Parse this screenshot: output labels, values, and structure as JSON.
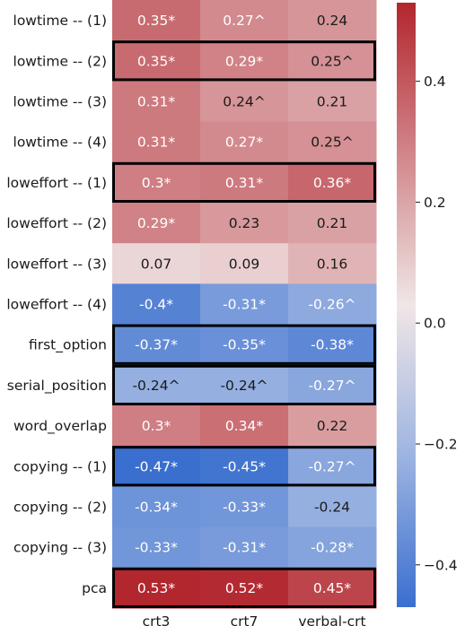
{
  "chart_data": {
    "type": "heatmap",
    "title": "",
    "rows": [
      "lowtime -- (1)",
      "lowtime -- (2)",
      "lowtime -- (3)",
      "lowtime -- (4)",
      "loweffort -- (1)",
      "loweffort -- (2)",
      "loweffort -- (3)",
      "loweffort -- (4)",
      "first_option",
      "serial_position",
      "word_overlap",
      "copying -- (1)",
      "copying -- (2)",
      "copying -- (3)",
      "pca"
    ],
    "columns": [
      "crt3",
      "crt7",
      "verbal-crt"
    ],
    "values": [
      [
        0.35,
        0.27,
        0.24
      ],
      [
        0.35,
        0.29,
        0.25
      ],
      [
        0.31,
        0.24,
        0.21
      ],
      [
        0.31,
        0.27,
        0.25
      ],
      [
        0.3,
        0.31,
        0.36
      ],
      [
        0.29,
        0.23,
        0.21
      ],
      [
        0.07,
        0.09,
        0.16
      ],
      [
        -0.4,
        -0.31,
        -0.26
      ],
      [
        -0.37,
        -0.35,
        -0.38
      ],
      [
        -0.24,
        -0.24,
        -0.27
      ],
      [
        0.3,
        0.34,
        0.22
      ],
      [
        -0.47,
        -0.45,
        -0.27
      ],
      [
        -0.34,
        -0.33,
        -0.24
      ],
      [
        -0.33,
        -0.31,
        -0.28
      ],
      [
        0.53,
        0.52,
        0.45
      ]
    ],
    "markers": [
      [
        "*",
        "^",
        ""
      ],
      [
        "*",
        "*",
        "^"
      ],
      [
        "*",
        "^",
        ""
      ],
      [
        "*",
        "*",
        "^"
      ],
      [
        "*",
        "*",
        "*"
      ],
      [
        "*",
        "",
        ""
      ],
      [
        "",
        "",
        ""
      ],
      [
        "*",
        "*",
        "^"
      ],
      [
        "*",
        "*",
        "*"
      ],
      [
        "^",
        "^",
        "^"
      ],
      [
        "*",
        "*",
        ""
      ],
      [
        "*",
        "*",
        "^"
      ],
      [
        "*",
        "*",
        ""
      ],
      [
        "*",
        "*",
        "*"
      ],
      [
        "*",
        "*",
        "*"
      ]
    ],
    "highlighted_rows": [
      "lowtime -- (2)",
      "loweffort -- (1)",
      "first_option",
      "serial_position",
      "copying -- (1)",
      "pca"
    ],
    "colormap": "coolwarm",
    "colorbar_range": [
      -0.47,
      0.53
    ],
    "colorbar_ticks": [
      0.4,
      0.2,
      0.0,
      -0.2,
      -0.4
    ],
    "colorbar_tick_labels": [
      "0.4",
      "0.2",
      "0.0",
      "−0.2",
      "−0.4"
    ],
    "colors": {
      "low": "#3a6fcf",
      "mid": "#f4f1f1",
      "high": "#b2262e"
    }
  }
}
